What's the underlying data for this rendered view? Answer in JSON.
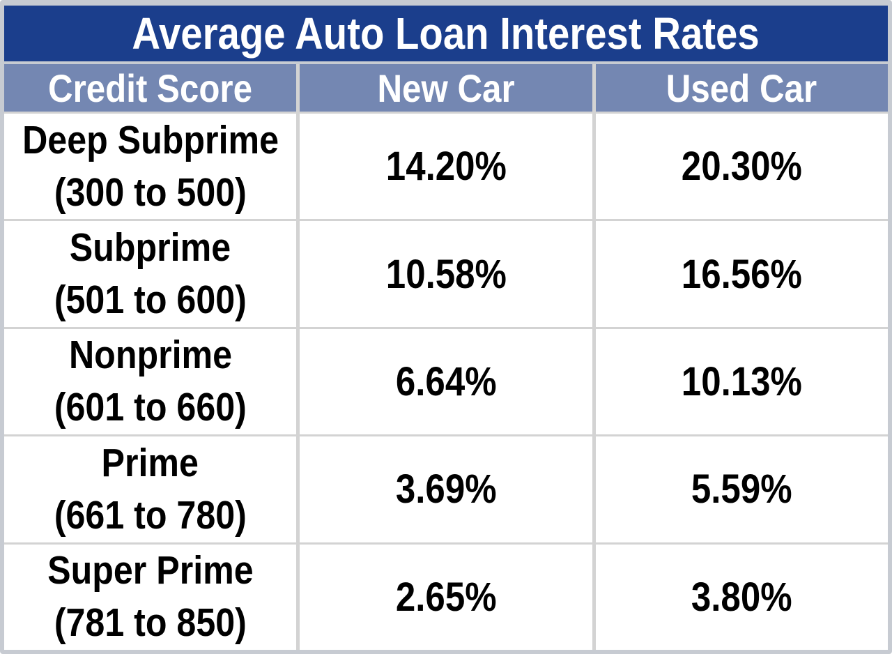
{
  "table": {
    "title": "Average Auto Loan Interest Rates",
    "headers": [
      "Credit Score",
      "New Car",
      "Used Car"
    ],
    "rows": [
      {
        "tier": "Deep Subprime",
        "range": "(300 to 500)",
        "new_car": "14.20%",
        "used_car": "20.30%"
      },
      {
        "tier": "Subprime",
        "range": "(501 to 600)",
        "new_car": "10.58%",
        "used_car": "16.56%"
      },
      {
        "tier": "Nonprime",
        "range": "(601 to 660)",
        "new_car": "6.64%",
        "used_car": "10.13%"
      },
      {
        "tier": "Prime",
        "range": "(661 to 780)",
        "new_car": "3.69%",
        "used_car": "5.59%"
      },
      {
        "tier": "Super Prime",
        "range": "(781 to 850)",
        "new_car": "2.65%",
        "used_car": "3.80%"
      }
    ]
  },
  "colors": {
    "title_bg": "#1b3e8c",
    "header_bg": "#7487b2",
    "header_text": "#ffffff",
    "body_bg": "#ffffff",
    "body_text": "#000000",
    "gridline": "#d3d3d3",
    "outer_border": "#c7cbd2"
  },
  "chart_data": {
    "type": "table",
    "title": "Average Auto Loan Interest Rates",
    "columns": [
      "Credit Score",
      "New Car",
      "Used Car"
    ],
    "rows": [
      [
        "Deep Subprime (300 to 500)",
        "14.20%",
        "20.30%"
      ],
      [
        "Subprime (501 to 600)",
        "10.58%",
        "16.56%"
      ],
      [
        "Nonprime (601 to 660)",
        "6.64%",
        "10.13%"
      ],
      [
        "Prime (661 to 780)",
        "3.69%",
        "5.59%"
      ],
      [
        "Super Prime (781 to 850)",
        "2.65%",
        "3.80%"
      ]
    ],
    "credit_score_tiers": [
      "Deep Subprime",
      "Subprime",
      "Nonprime",
      "Prime",
      "Super Prime"
    ],
    "credit_score_ranges": [
      "300 to 500",
      "501 to 600",
      "601 to 660",
      "661 to 780",
      "781 to 850"
    ],
    "new_car_rates_pct": [
      14.2,
      10.58,
      6.64,
      3.69,
      2.65
    ],
    "used_car_rates_pct": [
      20.3,
      16.56,
      10.13,
      5.59,
      3.8
    ]
  }
}
